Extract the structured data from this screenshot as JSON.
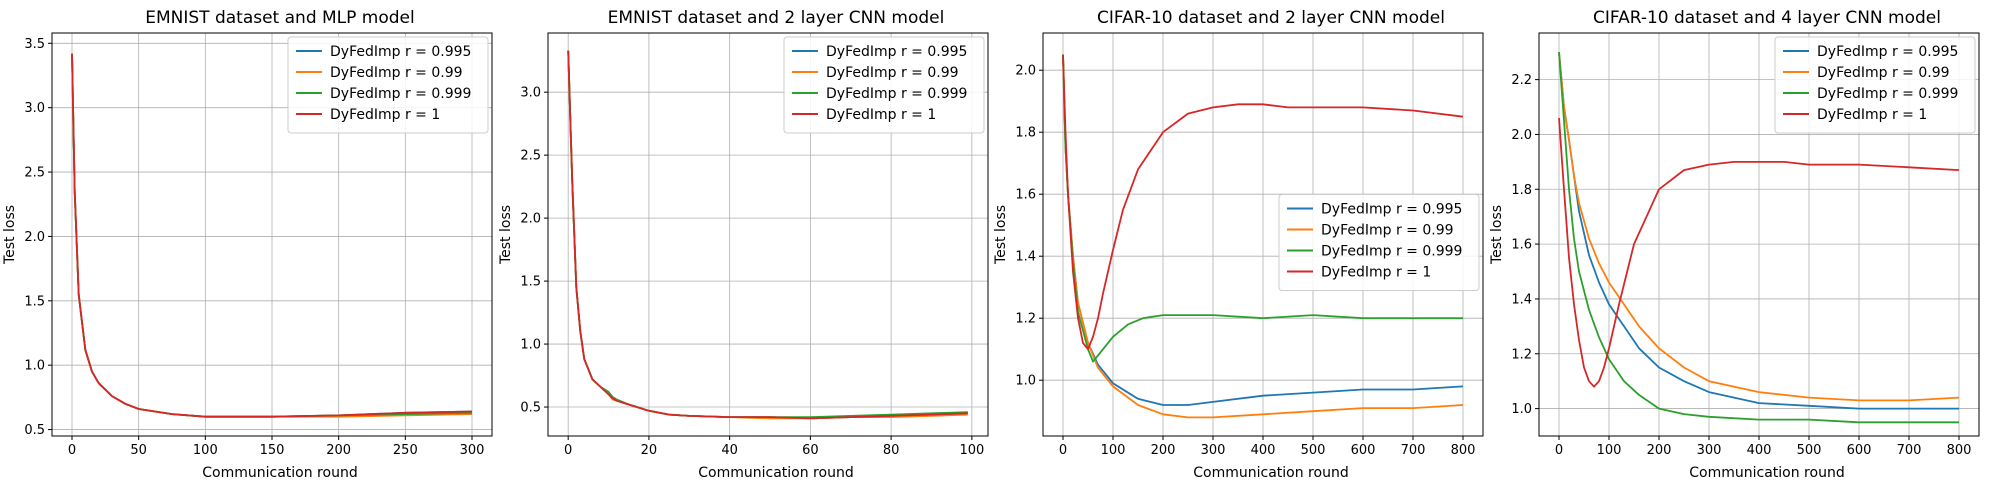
{
  "chart_data": [
    {
      "type": "line",
      "title": "EMNIST dataset and MLP model",
      "xlabel": "Communication round",
      "ylabel": "Test loss",
      "xlim": [
        -15,
        315
      ],
      "ylim": [
        0.45,
        3.58
      ],
      "xticks": [
        0,
        50,
        100,
        150,
        200,
        250,
        300
      ],
      "yticks": [
        0.5,
        1.0,
        1.5,
        2.0,
        2.5,
        3.0,
        3.5
      ],
      "ytick_labels": [
        "0.5",
        "1.0",
        "1.5",
        "2.0",
        "2.5",
        "3.0",
        "3.5"
      ],
      "grid": true,
      "legend_position": "top-right",
      "series": [
        {
          "name": "DyFedImp r = 0.995",
          "color": "#1f77b4",
          "x": [
            0,
            2,
            5,
            10,
            15,
            20,
            30,
            40,
            50,
            75,
            100,
            150,
            200,
            250,
            300
          ],
          "values": [
            3.42,
            2.35,
            1.55,
            1.12,
            0.95,
            0.86,
            0.76,
            0.7,
            0.66,
            0.62,
            0.6,
            0.6,
            0.61,
            0.63,
            0.64
          ]
        },
        {
          "name": "DyFedImp r = 0.99",
          "color": "#ff7f0e",
          "x": [
            0,
            2,
            5,
            10,
            15,
            20,
            30,
            40,
            50,
            75,
            100,
            150,
            200,
            250,
            300
          ],
          "values": [
            3.42,
            2.35,
            1.55,
            1.12,
            0.95,
            0.86,
            0.76,
            0.7,
            0.66,
            0.62,
            0.6,
            0.6,
            0.6,
            0.61,
            0.62
          ]
        },
        {
          "name": "DyFedImp r = 0.999",
          "color": "#2ca02c",
          "x": [
            0,
            2,
            5,
            10,
            15,
            20,
            30,
            40,
            50,
            75,
            100,
            150,
            200,
            250,
            300
          ],
          "values": [
            3.42,
            2.35,
            1.55,
            1.12,
            0.95,
            0.86,
            0.76,
            0.7,
            0.66,
            0.62,
            0.6,
            0.6,
            0.61,
            0.62,
            0.63
          ]
        },
        {
          "name": "DyFedImp r = 1",
          "color": "#d62728",
          "x": [
            0,
            2,
            5,
            10,
            15,
            20,
            30,
            40,
            50,
            75,
            100,
            150,
            200,
            250,
            300
          ],
          "values": [
            3.42,
            2.35,
            1.55,
            1.12,
            0.95,
            0.86,
            0.76,
            0.7,
            0.66,
            0.62,
            0.6,
            0.6,
            0.61,
            0.63,
            0.64
          ]
        }
      ]
    },
    {
      "type": "line",
      "title": "EMNIST dataset and 2 layer CNN model",
      "xlabel": "Communication round",
      "ylabel": "Test loss",
      "xlim": [
        -5,
        104
      ],
      "ylim": [
        0.27,
        3.47
      ],
      "xticks": [
        0,
        20,
        40,
        60,
        80,
        100
      ],
      "yticks": [
        0.5,
        1.0,
        1.5,
        2.0,
        2.5,
        3.0
      ],
      "ytick_labels": [
        "0.5",
        "1.0",
        "1.5",
        "2.0",
        "2.5",
        "3.0"
      ],
      "grid": true,
      "legend_position": "top-right",
      "series": [
        {
          "name": "DyFedImp r = 0.995",
          "color": "#1f77b4",
          "x": [
            0,
            1,
            2,
            3,
            4,
            6,
            8,
            10,
            11,
            12,
            15,
            20,
            25,
            30,
            40,
            50,
            60,
            70,
            80,
            90,
            99
          ],
          "values": [
            3.33,
            2.3,
            1.45,
            1.1,
            0.88,
            0.72,
            0.66,
            0.6,
            0.57,
            0.55,
            0.52,
            0.47,
            0.44,
            0.43,
            0.42,
            0.42,
            0.41,
            0.42,
            0.43,
            0.44,
            0.45
          ]
        },
        {
          "name": "DyFedImp r = 0.99",
          "color": "#ff7f0e",
          "x": [
            0,
            1,
            2,
            3,
            4,
            6,
            8,
            10,
            11,
            12,
            15,
            20,
            25,
            30,
            40,
            50,
            60,
            70,
            80,
            90,
            99
          ],
          "values": [
            3.33,
            2.3,
            1.45,
            1.1,
            0.88,
            0.72,
            0.66,
            0.6,
            0.56,
            0.55,
            0.52,
            0.47,
            0.44,
            0.43,
            0.42,
            0.41,
            0.41,
            0.42,
            0.42,
            0.43,
            0.44
          ]
        },
        {
          "name": "DyFedImp r = 0.999",
          "color": "#2ca02c",
          "x": [
            0,
            1,
            2,
            3,
            4,
            6,
            8,
            10,
            11,
            12,
            15,
            20,
            25,
            30,
            40,
            50,
            60,
            70,
            80,
            90,
            99
          ],
          "values": [
            3.33,
            2.3,
            1.45,
            1.1,
            0.88,
            0.72,
            0.66,
            0.62,
            0.58,
            0.56,
            0.52,
            0.47,
            0.44,
            0.43,
            0.42,
            0.42,
            0.42,
            0.43,
            0.44,
            0.45,
            0.46
          ]
        },
        {
          "name": "DyFedImp r = 1",
          "color": "#d62728",
          "x": [
            0,
            1,
            2,
            3,
            4,
            6,
            8,
            10,
            11,
            12,
            15,
            20,
            25,
            30,
            40,
            50,
            60,
            70,
            80,
            90,
            99
          ],
          "values": [
            3.33,
            2.3,
            1.45,
            1.1,
            0.88,
            0.72,
            0.66,
            0.6,
            0.57,
            0.55,
            0.52,
            0.47,
            0.44,
            0.43,
            0.42,
            0.42,
            0.41,
            0.42,
            0.43,
            0.44,
            0.45
          ]
        }
      ]
    },
    {
      "type": "line",
      "title": "CIFAR-10 dataset and 2 layer CNN  model",
      "xlabel": "Communication round",
      "ylabel": "Test loss",
      "xlim": [
        -40,
        840
      ],
      "ylim": [
        0.82,
        2.12
      ],
      "xticks": [
        0,
        100,
        200,
        300,
        400,
        500,
        600,
        700,
        800
      ],
      "yticks": [
        1.0,
        1.2,
        1.4,
        1.6,
        1.8,
        2.0
      ],
      "ytick_labels": [
        "1.0",
        "1.2",
        "1.4",
        "1.6",
        "1.8",
        "2.0"
      ],
      "grid": true,
      "legend_position": "center-right",
      "series": [
        {
          "name": "DyFedImp r = 0.995",
          "color": "#1f77b4",
          "x": [
            0,
            5,
            10,
            20,
            30,
            50,
            70,
            100,
            150,
            200,
            250,
            300,
            400,
            500,
            600,
            700,
            800
          ],
          "values": [
            2.05,
            1.75,
            1.6,
            1.4,
            1.25,
            1.12,
            1.05,
            0.99,
            0.94,
            0.92,
            0.92,
            0.93,
            0.95,
            0.96,
            0.97,
            0.97,
            0.98
          ]
        },
        {
          "name": "DyFedImp r = 0.99",
          "color": "#ff7f0e",
          "x": [
            0,
            5,
            10,
            20,
            30,
            50,
            70,
            100,
            150,
            200,
            250,
            300,
            400,
            500,
            600,
            700,
            800
          ],
          "values": [
            2.05,
            1.75,
            1.6,
            1.4,
            1.25,
            1.12,
            1.04,
            0.98,
            0.92,
            0.89,
            0.88,
            0.88,
            0.89,
            0.9,
            0.91,
            0.91,
            0.92
          ]
        },
        {
          "name": "DyFedImp r = 0.999",
          "color": "#2ca02c",
          "x": [
            0,
            5,
            10,
            20,
            30,
            50,
            60,
            70,
            80,
            100,
            130,
            160,
            200,
            250,
            300,
            400,
            500,
            600,
            700,
            800
          ],
          "values": [
            2.05,
            1.75,
            1.6,
            1.38,
            1.22,
            1.1,
            1.06,
            1.08,
            1.1,
            1.14,
            1.18,
            1.2,
            1.21,
            1.21,
            1.21,
            1.2,
            1.21,
            1.2,
            1.2,
            1.2
          ]
        },
        {
          "name": "DyFedImp r = 1",
          "color": "#d62728",
          "x": [
            0,
            5,
            10,
            20,
            30,
            40,
            50,
            60,
            70,
            80,
            100,
            120,
            150,
            200,
            250,
            300,
            350,
            400,
            450,
            500,
            600,
            700,
            800
          ],
          "values": [
            2.05,
            1.8,
            1.6,
            1.35,
            1.2,
            1.12,
            1.1,
            1.14,
            1.2,
            1.28,
            1.42,
            1.55,
            1.68,
            1.8,
            1.86,
            1.88,
            1.89,
            1.89,
            1.88,
            1.88,
            1.88,
            1.87,
            1.85
          ]
        }
      ]
    },
    {
      "type": "line",
      "title": "CIFAR-10 dataset and 4 layer CNN  model",
      "xlabel": "Communication round",
      "ylabel": "Test loss",
      "xlim": [
        -40,
        840
      ],
      "ylim": [
        0.9,
        2.37
      ],
      "xticks": [
        0,
        100,
        200,
        300,
        400,
        500,
        600,
        700,
        800
      ],
      "yticks": [
        1.0,
        1.2,
        1.4,
        1.6,
        1.8,
        2.0,
        2.2
      ],
      "ytick_labels": [
        "1.0",
        "1.2",
        "1.4",
        "1.6",
        "1.8",
        "2.0",
        "2.2"
      ],
      "grid": true,
      "legend_position": "top-right",
      "series": [
        {
          "name": "DyFedImp r = 0.995",
          "color": "#1f77b4",
          "x": [
            0,
            10,
            20,
            30,
            40,
            60,
            80,
            100,
            130,
            160,
            200,
            250,
            300,
            400,
            500,
            600,
            700,
            800
          ],
          "values": [
            2.3,
            2.1,
            1.98,
            1.85,
            1.72,
            1.56,
            1.46,
            1.38,
            1.3,
            1.22,
            1.15,
            1.1,
            1.06,
            1.02,
            1.01,
            1.0,
            1.0,
            1.0
          ]
        },
        {
          "name": "DyFedImp r = 0.99",
          "color": "#ff7f0e",
          "x": [
            0,
            10,
            20,
            30,
            40,
            60,
            80,
            100,
            130,
            160,
            200,
            250,
            300,
            400,
            500,
            600,
            700,
            800
          ],
          "values": [
            2.3,
            2.1,
            1.98,
            1.85,
            1.75,
            1.62,
            1.53,
            1.46,
            1.38,
            1.3,
            1.22,
            1.15,
            1.1,
            1.06,
            1.04,
            1.03,
            1.03,
            1.04
          ]
        },
        {
          "name": "DyFedImp r = 0.999",
          "color": "#2ca02c",
          "x": [
            0,
            10,
            20,
            30,
            40,
            60,
            80,
            100,
            130,
            160,
            200,
            250,
            300,
            400,
            500,
            600,
            700,
            800
          ],
          "values": [
            2.3,
            2.05,
            1.8,
            1.62,
            1.5,
            1.36,
            1.26,
            1.18,
            1.1,
            1.05,
            1.0,
            0.98,
            0.97,
            0.96,
            0.96,
            0.95,
            0.95,
            0.95
          ]
        },
        {
          "name": "DyFedImp r = 1",
          "color": "#d62728",
          "x": [
            0,
            10,
            20,
            30,
            40,
            50,
            60,
            70,
            80,
            90,
            100,
            120,
            150,
            200,
            250,
            300,
            350,
            400,
            450,
            500,
            600,
            700,
            800
          ],
          "values": [
            2.06,
            1.8,
            1.55,
            1.38,
            1.25,
            1.15,
            1.1,
            1.08,
            1.1,
            1.15,
            1.22,
            1.38,
            1.6,
            1.8,
            1.87,
            1.89,
            1.9,
            1.9,
            1.9,
            1.89,
            1.89,
            1.88,
            1.87
          ]
        }
      ]
    }
  ]
}
